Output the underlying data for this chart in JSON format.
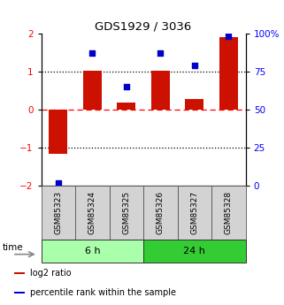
{
  "title": "GDS1929 / 3036",
  "samples": [
    "GSM85323",
    "GSM85324",
    "GSM85325",
    "GSM85326",
    "GSM85327",
    "GSM85328"
  ],
  "log2_ratio": [
    -1.15,
    1.02,
    0.18,
    1.02,
    0.28,
    1.9
  ],
  "percentile_rank": [
    2,
    87,
    65,
    87,
    79,
    98
  ],
  "groups": [
    {
      "label": "6 h",
      "indices": [
        0,
        1,
        2
      ],
      "color": "#aaffaa"
    },
    {
      "label": "24 h",
      "indices": [
        3,
        4,
        5
      ],
      "color": "#33cc33"
    }
  ],
  "bar_color": "#CC1100",
  "dot_color": "#0000CC",
  "ylim_left": [
    -2,
    2
  ],
  "ylim_right": [
    0,
    100
  ],
  "yticks_left": [
    -2,
    -1,
    0,
    1,
    2
  ],
  "yticks_right": [
    0,
    25,
    50,
    75,
    100
  ],
  "ytick_labels_right": [
    "0",
    "25",
    "50",
    "75",
    "100%"
  ],
  "hlines_dotted": [
    -1,
    1
  ],
  "hline_dashed": 0,
  "background_color": "#ffffff",
  "time_label": "time",
  "legend_items": [
    {
      "label": "log2 ratio",
      "color": "#CC1100"
    },
    {
      "label": "percentile rank within the sample",
      "color": "#0000CC"
    }
  ]
}
